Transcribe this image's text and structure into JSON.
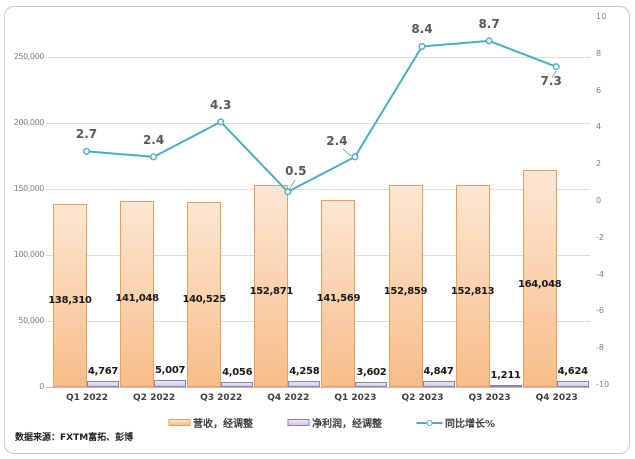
{
  "chart_data": {
    "type": "combo-bar-line",
    "categories": [
      "Q1 2022",
      "Q2 2022",
      "Q3 2022",
      "Q4 2022",
      "Q1 2023",
      "Q2 2023",
      "Q3 2023",
      "Q4 2023"
    ],
    "series": [
      {
        "name": "营收，经调整",
        "type": "bar",
        "axis": "left",
        "values": [
          138310,
          141048,
          140525,
          152871,
          141569,
          152859,
          152813,
          164048
        ],
        "labels": [
          "138,310",
          "141,048",
          "140,525",
          "152,871",
          "141,569",
          "152,859",
          "152,813",
          "164,048"
        ]
      },
      {
        "name": "净利润，经调整",
        "type": "bar",
        "axis": "left",
        "values": [
          4767,
          5007,
          4056,
          4258,
          3602,
          4847,
          1211,
          4624
        ],
        "labels": [
          "4,767",
          "5,007",
          "4,056",
          "4,258",
          "3,602",
          "4,847",
          "1,211",
          "4,624"
        ]
      },
      {
        "name": "同比增长%",
        "type": "line",
        "axis": "right",
        "values": [
          2.7,
          2.4,
          4.3,
          0.5,
          2.4,
          8.4,
          8.7,
          7.3
        ],
        "labels": [
          "2.7",
          "2.4",
          "4.3",
          "0.5",
          "2.4",
          "8.4",
          "8.7",
          "7.3"
        ]
      }
    ],
    "left_axis": {
      "min": 0,
      "max": 250000,
      "tick_labels": [
        "250,000",
        "200,000",
        "150,000",
        "100,000",
        "50,000",
        "0"
      ],
      "tick_values": [
        250000,
        200000,
        150000,
        100000,
        50000,
        0
      ]
    },
    "right_axis": {
      "min": -10,
      "max": 10,
      "tick_labels": [
        "10",
        "8",
        "6",
        "4",
        "2",
        "0",
        "-2",
        "-4",
        "-6",
        "-8",
        "-10"
      ],
      "tick_values": [
        10,
        8,
        6,
        4,
        2,
        0,
        -2,
        -4,
        -6,
        -8,
        -10
      ]
    },
    "grid": true,
    "legend_position": "bottom",
    "source_note": "数据来源：FXTM富拓、彭博"
  },
  "colors": {
    "revenue_fill_top": "#FCE7D3",
    "revenue_fill_bottom": "#F8BD89",
    "revenue_border": "#EDA05B",
    "profit_fill_top": "#EAE5F3",
    "profit_fill_bottom": "#D5CBE7",
    "profit_border": "#8F7FB8",
    "line": "#4BACC6",
    "grid": "#DCDCDC",
    "axis_line": "#BDBDBD",
    "value_label": "#1A1A1A",
    "line_label": "#595959",
    "axis_label": "#7F7F7F",
    "category_label": "#3F3F3F",
    "leader_line": "#A0A0A0"
  }
}
